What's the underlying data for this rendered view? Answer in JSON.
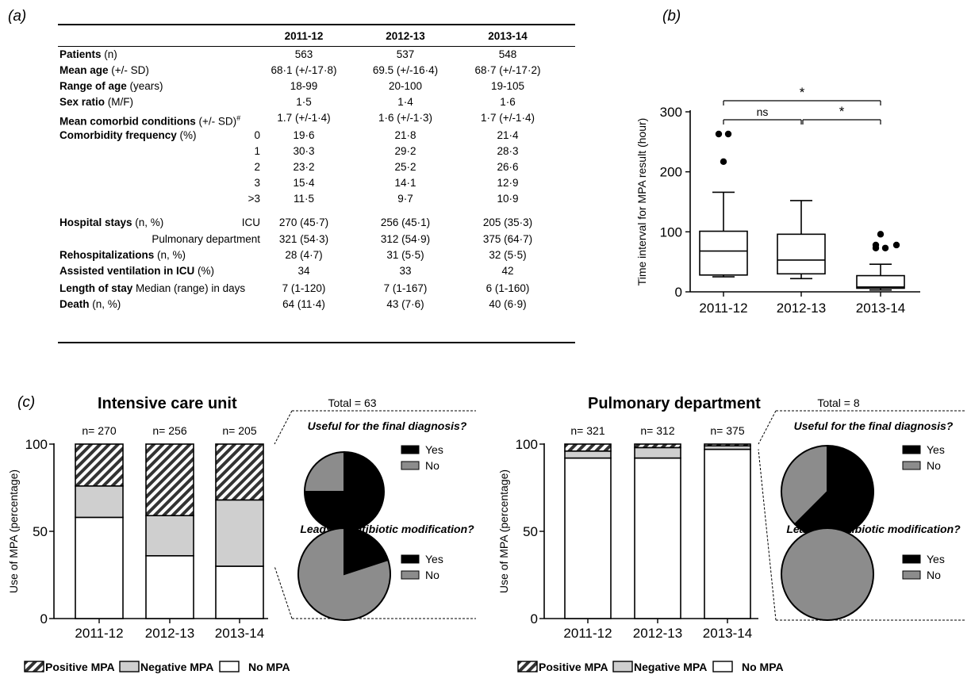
{
  "panel_letters": {
    "a": "(a)",
    "b": "(b)",
    "c": "(c)"
  },
  "table": {
    "years": [
      "2011-12",
      "2012-13",
      "2013-14"
    ],
    "rows": [
      {
        "bold": "Patients",
        "normal": " (n)",
        "sub": "",
        "values": [
          "563",
          "537",
          "548"
        ],
        "sup": ""
      },
      {
        "bold": "Mean age",
        "normal": " (+/- SD)",
        "sub": "",
        "values": [
          "68·1 (+/-17·8)",
          "69.5 (+/-16·4)",
          "68·7 (+/-17·2)"
        ],
        "sup": ""
      },
      {
        "bold": "Range of age",
        "normal": " (years)",
        "sub": "",
        "values": [
          "18-99",
          "20-100",
          "19-105"
        ],
        "sup": ""
      },
      {
        "bold": "Sex ratio",
        "normal": " (M/F)",
        "sub": "",
        "values": [
          "1·5",
          "1·4",
          "1·6"
        ],
        "sup": ""
      },
      {
        "bold": "Mean comorbid conditions",
        "normal": " (+/- SD)",
        "sub": "",
        "values": [
          "1.7 (+/-1·4)",
          "1·6 (+/-1·3)",
          "1·7 (+/-1·4)"
        ],
        "sup": "#"
      },
      {
        "bold": "Comorbidity frequency",
        "normal": " (%)",
        "sub": "0",
        "values": [
          "19·6",
          "21·8",
          "21·4"
        ],
        "sup": ""
      },
      {
        "bold": "",
        "normal": "",
        "sub": "1",
        "values": [
          "30·3",
          "29·2",
          "28·3"
        ],
        "sup": ""
      },
      {
        "bold": "",
        "normal": "",
        "sub": "2",
        "values": [
          "23·2",
          "25·2",
          "26·6"
        ],
        "sup": ""
      },
      {
        "bold": "",
        "normal": "",
        "sub": "3",
        "values": [
          "15·4",
          "14·1",
          "12·9"
        ],
        "sup": ""
      },
      {
        "bold": "",
        "normal": "",
        "sub": ">3",
        "values": [
          "11·5",
          "9·7",
          "10·9"
        ],
        "sup": ""
      },
      {
        "bold": "Hospital stays",
        "normal": "  (n, %)",
        "sub": "ICU",
        "values": [
          "270 (45·7)",
          "256 (45·1)",
          "205 (35·3)"
        ],
        "sup": ""
      },
      {
        "bold": "",
        "normal": "",
        "sub": "Pulmonary department",
        "values": [
          "321 (54·3)",
          "312 (54·9)",
          "375 (64·7)"
        ],
        "sup": ""
      },
      {
        "bold": "Rehospitalizations",
        "normal": " (n, %)",
        "sub": "",
        "values": [
          "28 (4·7)",
          "31 (5·5)",
          "32 (5·5)"
        ],
        "sup": ""
      },
      {
        "bold": "Assisted ventilation in ICU",
        "normal": " (%)",
        "sub": "",
        "values": [
          "34",
          "33",
          "42"
        ],
        "sup": ""
      },
      {
        "bold": "Length of stay",
        "normal": "  Median (range) in days",
        "sub": "",
        "values": [
          "7  (1-120)",
          "7 (1-167)",
          "6 (1-160)"
        ],
        "sup": ""
      },
      {
        "bold": "Death",
        "normal": " (n, %)",
        "sub": "",
        "values": [
          "64 (11·4)",
          "43 (7·6)",
          "40 (6·9)"
        ],
        "sup": ""
      }
    ]
  },
  "chart_data": [
    {
      "type": "box",
      "panel": "b",
      "categories": [
        "2011-12",
        "2012-13",
        "2013-14"
      ],
      "ylabel": "Time interval for MPA result (hour)",
      "ylim": [
        0,
        300
      ],
      "yticks": [
        0,
        100,
        200,
        300
      ],
      "boxes": [
        {
          "q1": 28,
          "median": 68,
          "q3": 101,
          "whisker_low": 25,
          "whisker_high": 166,
          "outliers": [
            217,
            263,
            263
          ]
        },
        {
          "q1": 30,
          "median": 53,
          "q3": 96,
          "whisker_low": 22,
          "whisker_high": 152,
          "outliers": []
        },
        {
          "q1": 6,
          "median": 8,
          "q3": 27,
          "whisker_low": 3,
          "whisker_high": 46,
          "outliers": [
            73,
            73,
            78,
            78,
            96
          ]
        }
      ],
      "significance": [
        {
          "from": 0,
          "to": 1,
          "label": "ns"
        },
        {
          "from": 1,
          "to": 2,
          "label": "*"
        },
        {
          "from": 0,
          "to": 2,
          "label": "*"
        }
      ]
    },
    {
      "type": "stacked-bar",
      "panel": "c",
      "title": "Intensive care unit",
      "categories": [
        "2011-12",
        "2012-13",
        "2013-14"
      ],
      "counts": [
        "n= 270",
        "n= 256",
        "n= 205"
      ],
      "ylabel": "Use of MPA (percentage)",
      "ylim": [
        0,
        100
      ],
      "yticks": [
        0,
        50,
        100
      ],
      "series": [
        {
          "name": "No MPA",
          "values": [
            58,
            36,
            30
          ]
        },
        {
          "name": "Negative MPA",
          "values": [
            18,
            23,
            38
          ]
        },
        {
          "name": "Positive MPA",
          "values": [
            24,
            41,
            32
          ]
        }
      ]
    },
    {
      "type": "pie",
      "panel": "c",
      "total_label": "Total = 63",
      "title": "Useful for the final diagnosis?",
      "categories": [
        "Yes",
        "No"
      ],
      "values": [
        75,
        25
      ]
    },
    {
      "type": "pie",
      "panel": "c",
      "title": "Leads to antibiotic modification?",
      "categories": [
        "Yes",
        "No"
      ],
      "values": [
        20,
        80
      ]
    },
    {
      "type": "stacked-bar",
      "panel": "c",
      "title": "Pulmonary department",
      "categories": [
        "2011-12",
        "2012-13",
        "2013-14"
      ],
      "counts": [
        "n= 321",
        "n= 312",
        "n= 375"
      ],
      "ylabel": "Use of MPA (percentage)",
      "ylim": [
        0,
        100
      ],
      "yticks": [
        0,
        50,
        100
      ],
      "series": [
        {
          "name": "No MPA",
          "values": [
            92,
            92,
            97
          ]
        },
        {
          "name": "Negative MPA",
          "values": [
            4,
            6,
            2
          ]
        },
        {
          "name": "Positive MPA",
          "values": [
            4,
            2,
            1
          ]
        }
      ]
    },
    {
      "type": "pie",
      "panel": "c",
      "total_label": "Total = 8",
      "title": "Useful for the final diagnosis?",
      "categories": [
        "Yes",
        "No"
      ],
      "values": [
        62.5,
        37.5
      ]
    },
    {
      "type": "pie",
      "panel": "c",
      "title": "Leads to antibiotic modification?",
      "categories": [
        "Yes",
        "No"
      ],
      "values": [
        0,
        100
      ]
    }
  ],
  "legend": {
    "positive": "Positive MPA",
    "negative": "Negative MPA",
    "none": "No MPA"
  },
  "colors": {
    "yes": "#000000",
    "no": "#8c8c8c",
    "negative": "#cfcfcf",
    "none": "#ffffff"
  }
}
